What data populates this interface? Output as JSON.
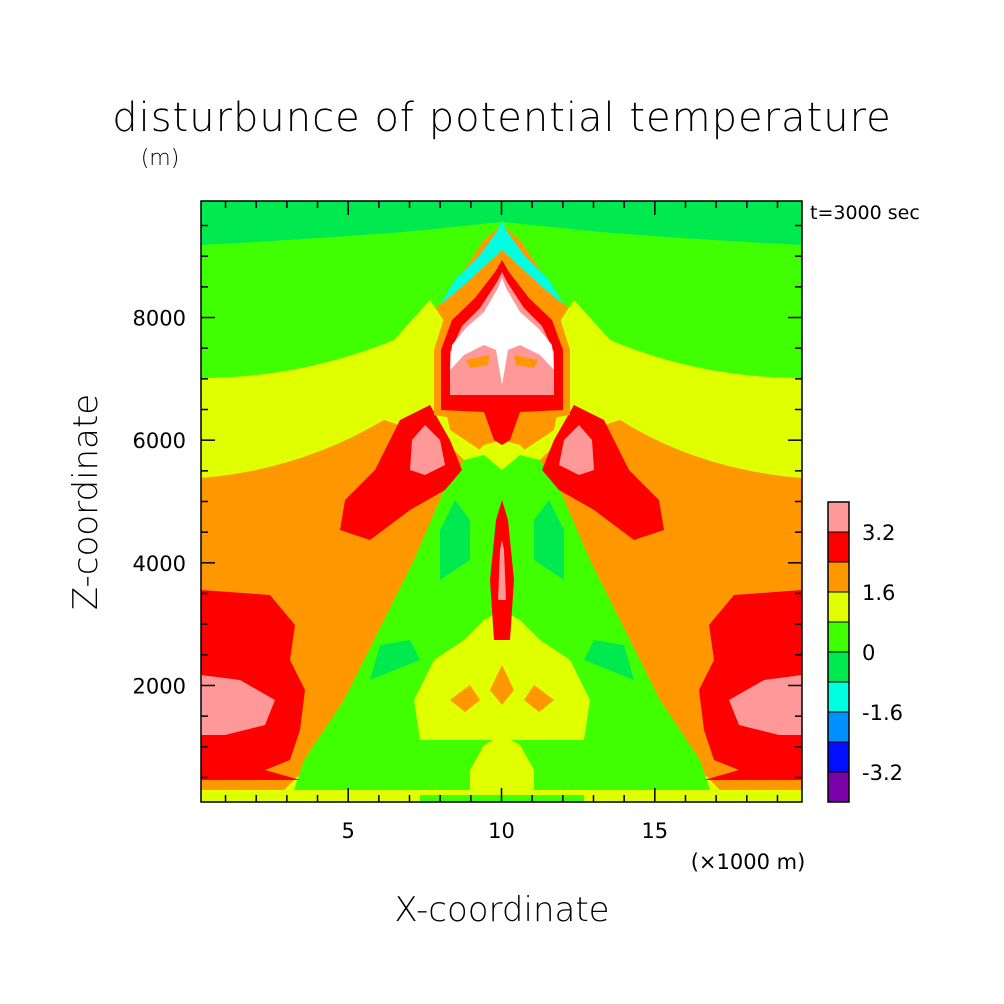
{
  "chart_data": {
    "type": "heatmap",
    "title": "disturbunce of potential temperature",
    "subtitle": "(m)",
    "time_label": "t=3000 sec",
    "xlabel": "X-coordinate",
    "ylabel": "Z-coordinate",
    "x_unit": "(×1000 m)",
    "x_ticks": [
      "5",
      "10",
      "15"
    ],
    "y_ticks": [
      "2000",
      "4000",
      "6000",
      "8000"
    ],
    "xlim": [
      0.2,
      19.8
    ],
    "ylim": [
      100,
      9900
    ],
    "grid": false,
    "legend_position": "right",
    "colorbar": {
      "tick_labels": [
        "3.2",
        "1.6",
        "0",
        "-1.6",
        "-3.2"
      ],
      "levels": [
        {
          "lo": -4.0,
          "hi": -3.2,
          "color": "#7a00a8"
        },
        {
          "lo": -3.2,
          "hi": -2.4,
          "color": "#0010ff"
        },
        {
          "lo": -2.4,
          "hi": -1.6,
          "color": "#0090ff"
        },
        {
          "lo": -1.6,
          "hi": -0.8,
          "color": "#00ffe0"
        },
        {
          "lo": -0.8,
          "hi": 0.0,
          "color": "#00ea50"
        },
        {
          "lo": 0.0,
          "hi": 0.8,
          "color": "#40ff00"
        },
        {
          "lo": 0.8,
          "hi": 1.6,
          "color": "#e0ff00"
        },
        {
          "lo": 1.6,
          "hi": 2.4,
          "color": "#ff9800"
        },
        {
          "lo": 2.4,
          "hi": 3.2,
          "color": "#ff0000"
        },
        {
          "lo": 3.2,
          "hi": 4.0,
          "color": "#ff9898"
        }
      ],
      "above_max_color": "#ffffff"
    },
    "field_notes": "warm (red/pink) plume centered at x=10 km with white core near z=7500-8700 m; cold cyan cap near z=9000-9500 m; symmetric warm lobes near x=6.5 and 13.5 km at z=4800-6300 m and near the side boundaries at z=500-3500 m"
  }
}
